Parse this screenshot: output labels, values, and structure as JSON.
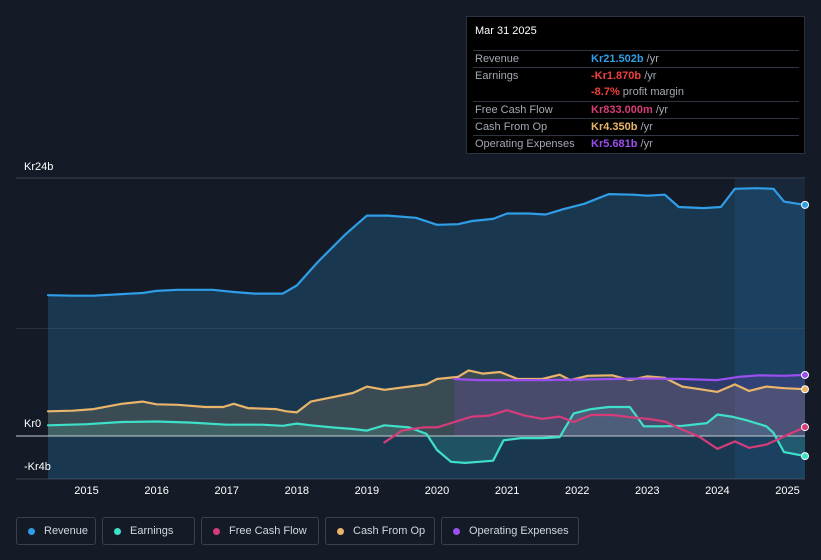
{
  "chart_data": {
    "type": "area",
    "y_top_label": "Kr24b",
    "y_zero_label": "Kr0",
    "y_bottom_label": "-Kr4b",
    "ylim": [
      -4,
      24
    ],
    "xlim": [
      2014.45,
      2025.25
    ],
    "forecast_start": 2024.25,
    "x_ticks": [
      "2015",
      "2016",
      "2017",
      "2018",
      "2019",
      "2020",
      "2021",
      "2022",
      "2023",
      "2024",
      "2025"
    ],
    "series": [
      {
        "name": "Revenue",
        "color": "#2f9de8",
        "fill": true,
        "fill_to_zero": false,
        "points": [
          [
            2014.45,
            13.1
          ],
          [
            2014.8,
            13.05
          ],
          [
            2015.1,
            13.05
          ],
          [
            2015.5,
            13.2
          ],
          [
            2015.8,
            13.3
          ],
          [
            2016.0,
            13.5
          ],
          [
            2016.3,
            13.6
          ],
          [
            2016.8,
            13.6
          ],
          [
            2017.1,
            13.4
          ],
          [
            2017.4,
            13.25
          ],
          [
            2017.8,
            13.25
          ],
          [
            2018.0,
            14.0
          ],
          [
            2018.3,
            16.2
          ],
          [
            2018.7,
            18.8
          ],
          [
            2019.0,
            20.5
          ],
          [
            2019.3,
            20.5
          ],
          [
            2019.7,
            20.3
          ],
          [
            2020.0,
            19.65
          ],
          [
            2020.3,
            19.7
          ],
          [
            2020.5,
            20.0
          ],
          [
            2020.8,
            20.2
          ],
          [
            2021.0,
            20.7
          ],
          [
            2021.3,
            20.7
          ],
          [
            2021.55,
            20.6
          ],
          [
            2021.8,
            21.1
          ],
          [
            2022.1,
            21.6
          ],
          [
            2022.45,
            22.5
          ],
          [
            2022.8,
            22.45
          ],
          [
            2023.0,
            22.35
          ],
          [
            2023.25,
            22.45
          ],
          [
            2023.45,
            21.3
          ],
          [
            2023.8,
            21.2
          ],
          [
            2024.05,
            21.3
          ],
          [
            2024.25,
            23.0
          ],
          [
            2024.55,
            23.05
          ],
          [
            2024.8,
            23.0
          ],
          [
            2024.95,
            21.8
          ],
          [
            2025.25,
            21.5
          ]
        ]
      },
      {
        "name": "Earnings",
        "color": "#3fe0c8",
        "fill": true,
        "fill_to_zero": true,
        "points": [
          [
            2014.45,
            1.0
          ],
          [
            2015.0,
            1.1
          ],
          [
            2015.5,
            1.3
          ],
          [
            2016.0,
            1.35
          ],
          [
            2016.5,
            1.25
          ],
          [
            2017.0,
            1.05
          ],
          [
            2017.5,
            1.05
          ],
          [
            2017.8,
            0.95
          ],
          [
            2018.0,
            1.15
          ],
          [
            2018.2,
            1.0
          ],
          [
            2018.5,
            0.8
          ],
          [
            2018.8,
            0.65
          ],
          [
            2019.0,
            0.5
          ],
          [
            2019.25,
            1.0
          ],
          [
            2019.6,
            0.8
          ],
          [
            2019.85,
            0.2
          ],
          [
            2020.0,
            -1.3
          ],
          [
            2020.2,
            -2.4
          ],
          [
            2020.4,
            -2.5
          ],
          [
            2020.6,
            -2.4
          ],
          [
            2020.8,
            -2.3
          ],
          [
            2020.95,
            -0.4
          ],
          [
            2021.2,
            -0.2
          ],
          [
            2021.5,
            -0.2
          ],
          [
            2021.75,
            -0.1
          ],
          [
            2021.95,
            2.1
          ],
          [
            2022.2,
            2.5
          ],
          [
            2022.45,
            2.7
          ],
          [
            2022.75,
            2.7
          ],
          [
            2022.95,
            0.9
          ],
          [
            2023.2,
            0.9
          ],
          [
            2023.5,
            0.95
          ],
          [
            2023.85,
            1.2
          ],
          [
            2024.0,
            2.0
          ],
          [
            2024.2,
            1.8
          ],
          [
            2024.4,
            1.5
          ],
          [
            2024.7,
            0.9
          ],
          [
            2024.8,
            0.3
          ],
          [
            2024.95,
            -1.5
          ],
          [
            2025.25,
            -1.87
          ]
        ]
      },
      {
        "name": "Free Cash Flow",
        "color": "#d63c7a",
        "fill": false,
        "fill_to_zero": false,
        "points": [
          [
            2019.25,
            -0.6
          ],
          [
            2019.5,
            0.5
          ],
          [
            2019.8,
            0.8
          ],
          [
            2020.0,
            0.8
          ],
          [
            2020.25,
            1.3
          ],
          [
            2020.5,
            1.8
          ],
          [
            2020.75,
            1.9
          ],
          [
            2021.0,
            2.4
          ],
          [
            2021.25,
            1.9
          ],
          [
            2021.5,
            1.6
          ],
          [
            2021.75,
            1.8
          ],
          [
            2021.95,
            1.3
          ],
          [
            2022.2,
            1.95
          ],
          [
            2022.5,
            1.95
          ],
          [
            2022.75,
            1.75
          ],
          [
            2023.0,
            1.6
          ],
          [
            2023.25,
            1.35
          ],
          [
            2023.5,
            0.6
          ],
          [
            2023.75,
            -0.1
          ],
          [
            2024.0,
            -1.2
          ],
          [
            2024.25,
            -0.5
          ],
          [
            2024.45,
            -1.1
          ],
          [
            2024.7,
            -0.8
          ],
          [
            2025.0,
            0.1
          ],
          [
            2025.25,
            0.83
          ]
        ]
      },
      {
        "name": "Cash From Op",
        "color": "#e9b56b",
        "fill": true,
        "fill_to_zero": true,
        "points": [
          [
            2014.45,
            2.3
          ],
          [
            2014.8,
            2.35
          ],
          [
            2015.1,
            2.5
          ],
          [
            2015.5,
            3.0
          ],
          [
            2015.8,
            3.2
          ],
          [
            2016.0,
            2.95
          ],
          [
            2016.3,
            2.9
          ],
          [
            2016.7,
            2.7
          ],
          [
            2016.95,
            2.7
          ],
          [
            2017.1,
            3.0
          ],
          [
            2017.3,
            2.6
          ],
          [
            2017.7,
            2.5
          ],
          [
            2017.85,
            2.3
          ],
          [
            2018.0,
            2.2
          ],
          [
            2018.2,
            3.2
          ],
          [
            2018.5,
            3.6
          ],
          [
            2018.8,
            4.0
          ],
          [
            2019.0,
            4.6
          ],
          [
            2019.25,
            4.3
          ],
          [
            2019.6,
            4.6
          ],
          [
            2019.85,
            4.8
          ],
          [
            2020.0,
            5.3
          ],
          [
            2020.3,
            5.5
          ],
          [
            2020.45,
            6.1
          ],
          [
            2020.65,
            5.8
          ],
          [
            2020.9,
            5.95
          ],
          [
            2021.15,
            5.3
          ],
          [
            2021.5,
            5.3
          ],
          [
            2021.75,
            5.7
          ],
          [
            2021.9,
            5.2
          ],
          [
            2022.15,
            5.6
          ],
          [
            2022.5,
            5.65
          ],
          [
            2022.75,
            5.2
          ],
          [
            2023.0,
            5.55
          ],
          [
            2023.25,
            5.4
          ],
          [
            2023.5,
            4.6
          ],
          [
            2023.75,
            4.35
          ],
          [
            2024.0,
            4.1
          ],
          [
            2024.25,
            4.8
          ],
          [
            2024.45,
            4.2
          ],
          [
            2024.7,
            4.6
          ],
          [
            2024.95,
            4.45
          ],
          [
            2025.25,
            4.35
          ]
        ]
      },
      {
        "name": "Operating Expenses",
        "color": "#9b4ff0",
        "fill": true,
        "fill_to_zero": true,
        "points": [
          [
            2020.25,
            5.3
          ],
          [
            2020.6,
            5.2
          ],
          [
            2021.0,
            5.2
          ],
          [
            2021.5,
            5.2
          ],
          [
            2022.0,
            5.25
          ],
          [
            2022.5,
            5.3
          ],
          [
            2023.0,
            5.35
          ],
          [
            2023.5,
            5.3
          ],
          [
            2024.0,
            5.2
          ],
          [
            2024.3,
            5.5
          ],
          [
            2024.6,
            5.65
          ],
          [
            2024.95,
            5.6
          ],
          [
            2025.25,
            5.68
          ]
        ]
      }
    ]
  },
  "tooltip": {
    "date": "Mar 31 2025",
    "rows": [
      {
        "label": "Revenue",
        "value": "Kr21.502b",
        "unit": " /yr",
        "color": "#2f9de8"
      },
      {
        "label": "Earnings",
        "value": "-Kr1.870b",
        "unit": " /yr",
        "color": "#f0413e"
      },
      {
        "label": "",
        "value": "-8.7%",
        "unit": " profit margin",
        "color": "#f0413e"
      },
      {
        "label": "Free Cash Flow",
        "value": "Kr833.000m",
        "unit": " /yr",
        "color": "#d63c7a"
      },
      {
        "label": "Cash From Op",
        "value": "Kr4.350b",
        "unit": " /yr",
        "color": "#e9b56b"
      },
      {
        "label": "Operating Expenses",
        "value": "Kr5.681b",
        "unit": " /yr",
        "color": "#9b4ff0"
      }
    ]
  },
  "legend": [
    {
      "label": "Revenue",
      "color": "#2f9de8"
    },
    {
      "label": "Earnings",
      "color": "#3fe0c8"
    },
    {
      "label": "Free Cash Flow",
      "color": "#d63c7a"
    },
    {
      "label": "Cash From Op",
      "color": "#e9b56b"
    },
    {
      "label": "Operating Expenses",
      "color": "#9b4ff0"
    }
  ]
}
